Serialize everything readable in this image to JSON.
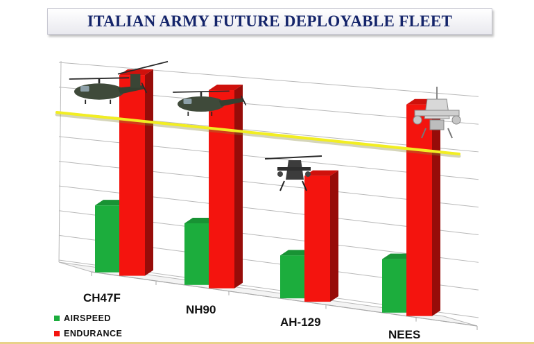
{
  "title": "ITALIAN ARMY FUTURE DEPLOYABLE FLEET",
  "colors": {
    "airspeed": "#1cad3d",
    "endurance": "#f4140e",
    "threshold_line": "#f2ee22",
    "title_text": "#14246a"
  },
  "chart_data": {
    "type": "bar",
    "style": "3d-clustered",
    "categories": [
      "CH47F",
      "NH90",
      "AH-129",
      "NEES"
    ],
    "series": [
      {
        "name": "AIRSPEED",
        "values": [
          2.5,
          2.3,
          1.6,
          2.0
        ]
      },
      {
        "name": "ENDURANCE",
        "values": [
          7.5,
          7.4,
          4.7,
          7.9
        ]
      }
    ],
    "reference_line": {
      "start": 5.8,
      "end": 4.5
    },
    "ylim": [
      0,
      8
    ],
    "grid": true,
    "legend_placement": "bottom-left",
    "icons": [
      "ch47f-helicopter-icon",
      "nh90-helicopter-icon",
      "ah129-helicopter-icon",
      "nees-helicopter-icon"
    ]
  }
}
